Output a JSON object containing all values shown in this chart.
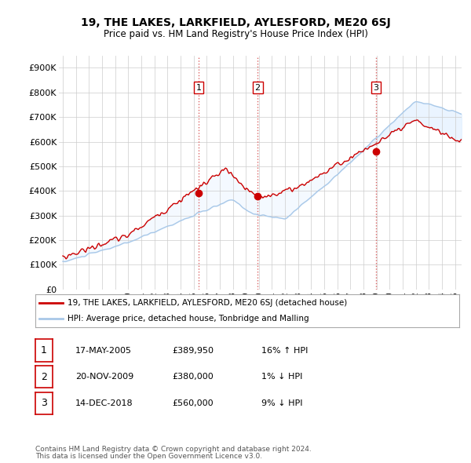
{
  "title": "19, THE LAKES, LARKFIELD, AYLESFORD, ME20 6SJ",
  "subtitle": "Price paid vs. HM Land Registry's House Price Index (HPI)",
  "yticks": [
    0,
    100000,
    200000,
    300000,
    400000,
    500000,
    600000,
    700000,
    800000,
    900000
  ],
  "ytick_labels": [
    "£0",
    "£100K",
    "£200K",
    "£300K",
    "£400K",
    "£500K",
    "£600K",
    "£700K",
    "£800K",
    "£900K"
  ],
  "ylim": [
    0,
    950000
  ],
  "hpi_color": "#a8c8e8",
  "hpi_fill_color": "#ddeeff",
  "price_color": "#cc0000",
  "marker_color": "#cc0000",
  "vline_color": "#dd6666",
  "vline_style": ":",
  "transactions": [
    {
      "date_num": 2005.38,
      "price": 389950,
      "label": "1"
    },
    {
      "date_num": 2009.9,
      "price": 380000,
      "label": "2"
    },
    {
      "date_num": 2018.96,
      "price": 560000,
      "label": "3"
    }
  ],
  "legend_line1": "19, THE LAKES, LARKFIELD, AYLESFORD, ME20 6SJ (detached house)",
  "legend_line2": "HPI: Average price, detached house, Tonbridge and Malling",
  "table_rows": [
    {
      "num": "1",
      "date": "17-MAY-2005",
      "price": "£389,950",
      "change": "16% ↑ HPI"
    },
    {
      "num": "2",
      "date": "20-NOV-2009",
      "price": "£380,000",
      "change": "1% ↓ HPI"
    },
    {
      "num": "3",
      "date": "14-DEC-2018",
      "price": "£560,000",
      "change": "9% ↓ HPI"
    }
  ],
  "footer1": "Contains HM Land Registry data © Crown copyright and database right 2024.",
  "footer2": "This data is licensed under the Open Government Licence v3.0.",
  "bg_color": "#ffffff",
  "grid_color": "#cccccc"
}
